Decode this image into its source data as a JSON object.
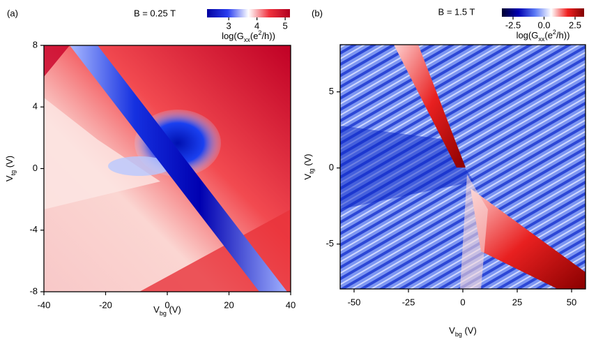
{
  "chart_data": [
    {
      "type": "heatmap",
      "panel_label": "(a)",
      "title": "B = 0.25 T",
      "x_label": [
        "V",
        "bg",
        " (V)"
      ],
      "y_label": [
        "V",
        "tg",
        " (V)"
      ],
      "xlim": [
        -40,
        40
      ],
      "xticks": [
        -40,
        -20,
        0,
        20,
        40
      ],
      "ylim": [
        -8,
        8
      ],
      "yticks": [
        -8,
        -4,
        0,
        4,
        8
      ],
      "colorbar": {
        "label": [
          "log(G",
          "xx",
          "(e",
          "2",
          "/h))"
        ],
        "lim": [
          2.23,
          5.17
        ],
        "ticks": [
          3,
          4,
          5
        ],
        "colors": [
          "#0000a0",
          "#2a3ef0",
          "#ffffff",
          "#f0303c",
          "#b00020"
        ]
      }
    },
    {
      "type": "heatmap",
      "panel_label": "(b)",
      "title": "B = 1.5 T",
      "x_label": [
        "V",
        "bg",
        " (V)"
      ],
      "y_label": [
        "V",
        "tg",
        " (V)"
      ],
      "xlim": [
        -56.4,
        56.4
      ],
      "xticks": [
        -50,
        -25,
        0,
        25,
        50
      ],
      "ylim": [
        -7.95,
        8.1
      ],
      "yticks": [
        -5,
        0,
        5
      ],
      "colorbar": {
        "label": [
          "log(G",
          "xx",
          "(e",
          "2",
          "/h))"
        ],
        "lim": [
          -3.4,
          3.23
        ],
        "ticks": [
          -2.5,
          {
            "value": 0,
            "label": "0.0"
          },
          2.5
        ],
        "colors": [
          "#000030",
          "#0000b0",
          "#5a78f5",
          "#ffffff",
          "#f02020",
          "#800000"
        ]
      }
    }
  ]
}
